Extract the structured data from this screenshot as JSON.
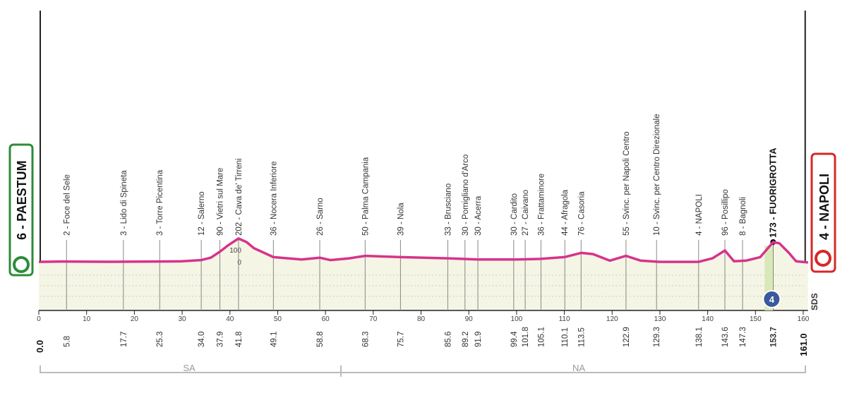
{
  "chart_data": {
    "type": "profile",
    "start": {
      "label": "6 - PAESTUM",
      "km": {
        "value": 0,
        "label": "0.0"
      }
    },
    "finish": {
      "label": "4 - NAPOLI",
      "km": {
        "value": 161,
        "label": "161.0"
      }
    },
    "towns": [
      {
        "label": "2 - Foce del Sele",
        "km": 5.8
      },
      {
        "label": "3 - Lido di Spineta",
        "km": 17.7
      },
      {
        "label": "3 - Torre Picentina",
        "km": 25.3
      },
      {
        "label": "12 - Salerno",
        "km": {
          "value": 34,
          "label": "34.0"
        }
      },
      {
        "label": "90 - Vietri sul Mare",
        "km": 37.9
      },
      {
        "label": "202 - Cava de' Tirreni",
        "km": 41.8
      },
      {
        "label": "36 - Nocera Inferiore",
        "km": 49.1
      },
      {
        "label": "26 - Sarno",
        "km": 58.8
      },
      {
        "label": "50 - Palma Campania",
        "km": 68.3
      },
      {
        "label": "39 - Nola",
        "km": 75.7
      },
      {
        "label": "33 - Brusciano",
        "km": 85.6
      },
      {
        "label": "30 - Pomigliano d'Arco",
        "km": 89.2
      },
      {
        "label": "30 - Acerra",
        "km": 91.9
      },
      {
        "label": "30 - Cardito",
        "km": 99.4
      },
      {
        "label": "27 - Caivano",
        "km": 101.8
      },
      {
        "label": "36 - Frattaminore",
        "km": 105.1
      },
      {
        "label": "44 - Afragola",
        "km": 110.1
      },
      {
        "label": "76 - Casoria",
        "km": 113.5
      },
      {
        "label": "55 - Svinc. per Napoli Centro",
        "km": 122.9
      },
      {
        "label": "10 - Svinc. per Centro Direzionale",
        "km": 129.3
      },
      {
        "label": "4 - NAPOLI",
        "km": 138.1
      },
      {
        "label": "96 - Posillipo",
        "km": 143.6
      },
      {
        "label": "8 - Bagnoli",
        "km": 147.3
      },
      {
        "label": "173 - FUORIGROTTA",
        "km": 153.7,
        "bold": true
      }
    ],
    "profile": {
      "color": "#d6338c",
      "fill": "#f4f5e4",
      "x": [
        0,
        5,
        15,
        25,
        30,
        34,
        36,
        37.9,
        39.5,
        41.8,
        43.5,
        45,
        49.1,
        55,
        58.8,
        61,
        65,
        68.3,
        75.7,
        85.6,
        92,
        100,
        105,
        110,
        113.5,
        116,
        119.5,
        122.9,
        126,
        130,
        136,
        138.1,
        141,
        143.6,
        145.5,
        148,
        151,
        153.7,
        155,
        157,
        158.5,
        161
      ],
      "values": [
        5,
        8,
        6,
        8,
        10,
        20,
        40,
        90,
        140,
        200,
        170,
        120,
        45,
        25,
        40,
        20,
        35,
        55,
        45,
        35,
        25,
        25,
        30,
        45,
        80,
        70,
        15,
        55,
        15,
        5,
        5,
        5,
        35,
        100,
        10,
        15,
        45,
        170,
        160,
        80,
        10,
        0
      ]
    },
    "xlim": [
      0,
      161
    ],
    "xticks": [
      0,
      10,
      20,
      30,
      40,
      50,
      60,
      70,
      80,
      90,
      100,
      110,
      120,
      130,
      140,
      150,
      160
    ],
    "ylim": [
      -400,
      2100
    ],
    "yticks": [
      0,
      100
    ],
    "provinces": [
      "SA",
      "NA"
    ],
    "sprint_badge": "4",
    "logo": "SDS"
  }
}
